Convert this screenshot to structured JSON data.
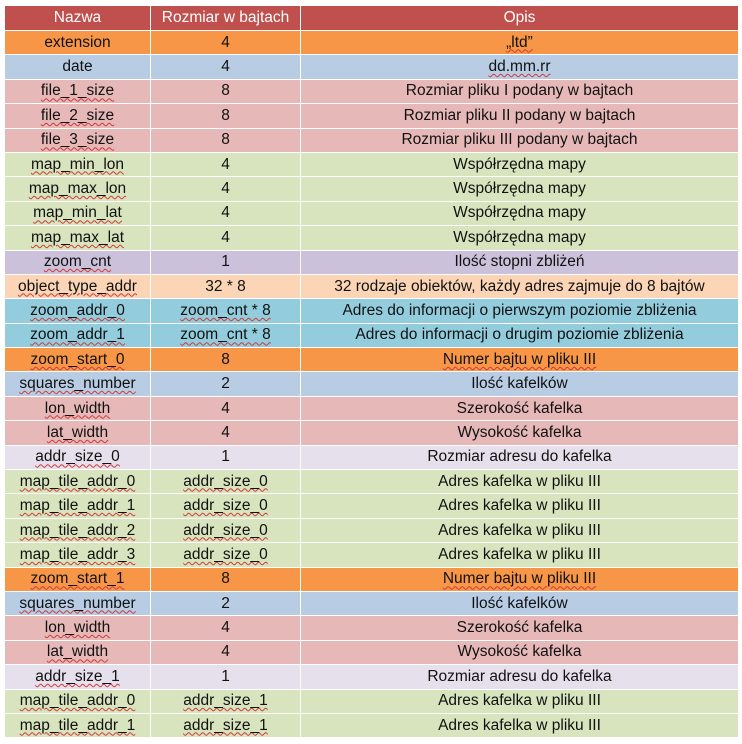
{
  "colors": {
    "header": "#c0504d",
    "orange": "#f79646",
    "blue": "#b8cce4",
    "pink": "#e6b9b8",
    "green": "#d7e4bd",
    "purple": "#ccc1da",
    "lavender": "#e6e0ec",
    "peach": "#fbd5b5",
    "teal": "#93cddd",
    "text": "#111111",
    "spellcheck_underline": "#d03a3a"
  },
  "table": {
    "headers": [
      "Nazwa",
      "Rozmiar w bajtach",
      "Opis"
    ],
    "rows": [
      {
        "name": "extension",
        "size": "4",
        "desc": "„ltd”",
        "color": "orange",
        "name_wavy": false,
        "size_wavy": false,
        "desc_wavy": true
      },
      {
        "name": "date",
        "size": "4",
        "desc": "dd.mm.rr",
        "color": "blue",
        "name_wavy": false,
        "size_wavy": false,
        "desc_wavy": true
      },
      {
        "name": "file_1_size",
        "size": "8",
        "desc": "Rozmiar pliku I podany w bajtach",
        "color": "pink",
        "name_wavy": true,
        "size_wavy": false,
        "desc_wavy": false
      },
      {
        "name": "file_2_size",
        "size": "8",
        "desc": "Rozmiar pliku II podany w bajtach",
        "color": "pink",
        "name_wavy": true,
        "size_wavy": false,
        "desc_wavy": false
      },
      {
        "name": "file_3_size",
        "size": "8",
        "desc": "Rozmiar pliku III podany w bajtach",
        "color": "pink",
        "name_wavy": true,
        "size_wavy": false,
        "desc_wavy": false
      },
      {
        "name": "map_min_lon",
        "size": "4",
        "desc": "Współrzędna mapy",
        "color": "green",
        "name_wavy": true,
        "size_wavy": false,
        "desc_wavy": false
      },
      {
        "name": "map_max_lon",
        "size": "4",
        "desc": "Współrzędna mapy",
        "color": "green",
        "name_wavy": true,
        "size_wavy": false,
        "desc_wavy": false
      },
      {
        "name": "map_min_lat",
        "size": "4",
        "desc": "Współrzędna mapy",
        "color": "green",
        "name_wavy": true,
        "size_wavy": false,
        "desc_wavy": false
      },
      {
        "name": "map_max_lat",
        "size": "4",
        "desc": "Współrzędna mapy",
        "color": "green",
        "name_wavy": true,
        "size_wavy": false,
        "desc_wavy": false
      },
      {
        "name": "zoom_cnt",
        "size": "1",
        "desc": "Ilość stopni zbliżeń",
        "color": "purple",
        "name_wavy": true,
        "size_wavy": false,
        "desc_wavy": false
      },
      {
        "name": "object_type_addr",
        "size": "32 * 8",
        "desc": "32 rodzaje obiektów, każdy adres zajmuje do 8 bajtów",
        "color": "peach",
        "name_wavy": true,
        "size_wavy": false,
        "desc_wavy": false
      },
      {
        "name": "zoom_addr_0",
        "size": "zoom_cnt * 8",
        "desc": "Adres do informacji o pierwszym poziomie zbliżenia",
        "color": "teal",
        "name_wavy": true,
        "size_wavy": true,
        "desc_wavy": false
      },
      {
        "name": "zoom_addr_1",
        "size": "zoom_cnt * 8",
        "desc": "Adres do informacji o drugim poziomie zbliżenia",
        "color": "teal",
        "name_wavy": true,
        "size_wavy": true,
        "desc_wavy": false
      },
      {
        "name": "zoom_start_0",
        "size": "8",
        "desc": "Numer bajtu w pliku III",
        "color": "orange",
        "name_wavy": true,
        "size_wavy": false,
        "desc_wavy": true
      },
      {
        "name": "squares_number",
        "size": "2",
        "desc": "Ilość kafelków",
        "color": "blue",
        "name_wavy": true,
        "size_wavy": false,
        "desc_wavy": false
      },
      {
        "name": "lon_width",
        "size": "4",
        "desc": "Szerokość kafelka",
        "color": "pink",
        "name_wavy": true,
        "size_wavy": false,
        "desc_wavy": false
      },
      {
        "name": "lat_width",
        "size": "4",
        "desc": "Wysokość kafelka",
        "color": "pink",
        "name_wavy": true,
        "size_wavy": false,
        "desc_wavy": false
      },
      {
        "name": "addr_size_0",
        "size": "1",
        "desc": "Rozmiar adresu do kafelka",
        "color": "lavender",
        "name_wavy": true,
        "size_wavy": false,
        "desc_wavy": false
      },
      {
        "name": "map_tile_addr_0",
        "size": "addr_size_0",
        "desc": "Adres kafelka w pliku III",
        "color": "green",
        "name_wavy": true,
        "size_wavy": true,
        "desc_wavy": false
      },
      {
        "name": "map_tile_addr_1",
        "size": "addr_size_0",
        "desc": "Adres kafelka w pliku III",
        "color": "green",
        "name_wavy": true,
        "size_wavy": true,
        "desc_wavy": false
      },
      {
        "name": "map_tile_addr_2",
        "size": "addr_size_0",
        "desc": "Adres kafelka w pliku III",
        "color": "green",
        "name_wavy": true,
        "size_wavy": true,
        "desc_wavy": false
      },
      {
        "name": "map_tile_addr_3",
        "size": "addr_size_0",
        "desc": "Adres kafelka w pliku III",
        "color": "green",
        "name_wavy": true,
        "size_wavy": true,
        "desc_wavy": false
      },
      {
        "name": "zoom_start_1",
        "size": "8",
        "desc": "Numer bajtu w pliku III",
        "color": "orange",
        "name_wavy": true,
        "size_wavy": false,
        "desc_wavy": true
      },
      {
        "name": "squares_number",
        "size": "2",
        "desc": "Ilość kafelków",
        "color": "blue",
        "name_wavy": true,
        "size_wavy": false,
        "desc_wavy": false
      },
      {
        "name": "lon_width",
        "size": "4",
        "desc": "Szerokość kafelka",
        "color": "pink",
        "name_wavy": true,
        "size_wavy": false,
        "desc_wavy": false
      },
      {
        "name": "lat_width",
        "size": "4",
        "desc": "Wysokość kafelka",
        "color": "pink",
        "name_wavy": true,
        "size_wavy": false,
        "desc_wavy": false
      },
      {
        "name": "addr_size_1",
        "size": "1",
        "desc": "Rozmiar adresu do kafelka",
        "color": "lavender",
        "name_wavy": true,
        "size_wavy": false,
        "desc_wavy": false
      },
      {
        "name": "map_tile_addr_0",
        "size": "addr_size_1",
        "desc": "Adres kafelka w pliku III",
        "color": "green",
        "name_wavy": true,
        "size_wavy": true,
        "desc_wavy": false
      },
      {
        "name": "map_tile_addr_1",
        "size": "addr_size_1",
        "desc": "Adres kafelka w pliku III",
        "color": "green",
        "name_wavy": true,
        "size_wavy": true,
        "desc_wavy": false
      }
    ]
  }
}
